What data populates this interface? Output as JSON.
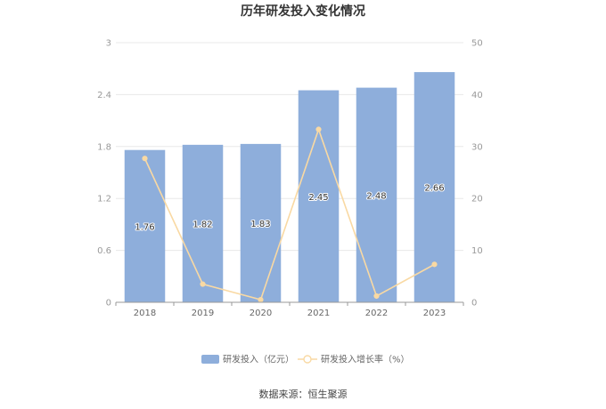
{
  "chart_data": {
    "type": "bar",
    "title": "历年研发投入变化情况",
    "categories": [
      "2018",
      "2019",
      "2020",
      "2021",
      "2022",
      "2023"
    ],
    "series": [
      {
        "name": "研发投入（亿元）",
        "type": "bar",
        "axis": "left",
        "values": [
          1.76,
          1.82,
          1.83,
          2.45,
          2.48,
          2.66
        ],
        "color": "#8eaedb"
      },
      {
        "name": "研发投入增长率（%）",
        "type": "line",
        "axis": "right",
        "values": [
          27.7,
          3.5,
          0.5,
          33.3,
          1.2,
          7.3
        ],
        "color": "#f9d9a3"
      }
    ],
    "y_left": {
      "ticks": [
        "0",
        "0.6",
        "1.2",
        "1.8",
        "2.4",
        "3"
      ],
      "range": [
        0,
        3
      ]
    },
    "y_right": {
      "ticks": [
        "0",
        "10",
        "20",
        "30",
        "40",
        "50"
      ],
      "range": [
        0,
        50
      ]
    },
    "grid": true,
    "legend": "bottom"
  },
  "source": "数据来源：恒生聚源"
}
